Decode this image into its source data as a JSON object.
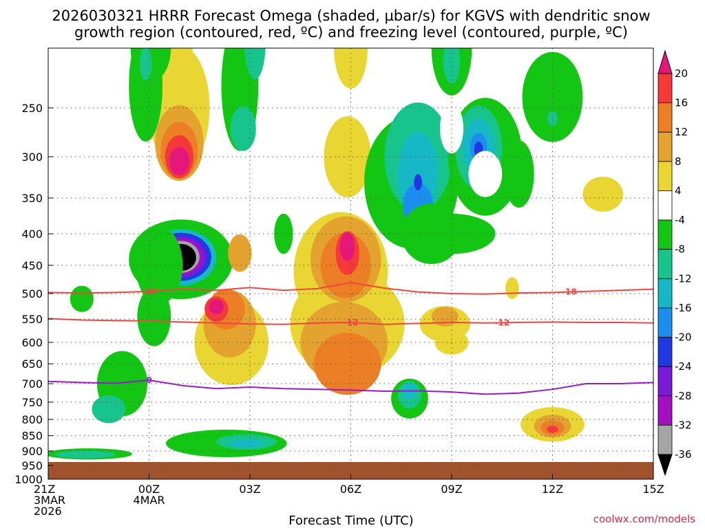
{
  "title_line1": "2026030321 HRRR Forecast Omega (shaded, µbar/s) for KGVS with dendritic snow",
  "title_line2": "growth region (contoured, red, ºC) and freezing level (contoured, purple, ºC)",
  "credit": "coolwx.com/models",
  "chart_data": {
    "type": "heatmap",
    "title": "2026030321 HRRR Forecast Omega (shaded, µbar/s) for KGVS with dendritic snow growth region (contoured, red, ºC) and freezing level (contoured, purple, ºC)",
    "xlabel": "Forecast Time (UTC)",
    "ylabel": "",
    "xlim": [
      0,
      18
    ],
    "ylim": [
      1000,
      200
    ],
    "y_scale": "log-pressure",
    "grid": true,
    "x_ticks": [
      {
        "x": 0,
        "lines": [
          "21Z",
          "3MAR",
          "2026"
        ]
      },
      {
        "x": 3,
        "lines": [
          "00Z",
          "4MAR"
        ]
      },
      {
        "x": 6,
        "lines": [
          "03Z"
        ]
      },
      {
        "x": 9,
        "lines": [
          "06Z"
        ]
      },
      {
        "x": 12,
        "lines": [
          "09Z"
        ]
      },
      {
        "x": 15,
        "lines": [
          "12Z"
        ]
      },
      {
        "x": 18,
        "lines": [
          "15Z"
        ]
      }
    ],
    "y_ticks": [
      250,
      300,
      350,
      400,
      450,
      500,
      550,
      600,
      650,
      700,
      750,
      800,
      850,
      900,
      950,
      1000
    ],
    "colorbar": {
      "levels": [
        "20",
        "16",
        "12",
        "8",
        "4",
        "-4",
        "-8",
        "-12",
        "-16",
        "-20",
        "-24",
        "-28",
        "-32",
        "-36"
      ],
      "colors": [
        "#e6177a",
        "#f5393a",
        "#ec7e26",
        "#e4a22f",
        "#e9d633",
        "#ffffff",
        "#13c613",
        "#17c48b",
        "#17b8c6",
        "#1a8ff0",
        "#2138e6",
        "#7a19d8",
        "#a40fc4",
        "#a5a5a5",
        "#000000"
      ]
    },
    "omega_features": [
      {
        "x": 3.95,
        "p": 435,
        "value": -40
      },
      {
        "x": 3.9,
        "p": 305,
        "value": 20
      },
      {
        "x": 5.0,
        "p": 530,
        "value": 20
      },
      {
        "x": 8.9,
        "p": 420,
        "value": 20
      },
      {
        "x": 11.0,
        "p": 410,
        "value": -24
      },
      {
        "x": 12.8,
        "p": 290,
        "value": -22
      },
      {
        "x": 15.0,
        "p": 830,
        "value": 16
      },
      {
        "x": 6.0,
        "p": 880,
        "value": -14
      },
      {
        "x": 10.75,
        "p": 720,
        "value": -18
      },
      {
        "x": 1.1,
        "p": 910,
        "value": -12
      },
      {
        "x": 2.9,
        "p": 215,
        "value": -12
      }
    ],
    "series": [
      {
        "name": "-18",
        "color": "#f0453e",
        "p": [
          498,
          499,
          498,
          496,
          492,
          494,
          489,
          494,
          491,
          480,
          490,
          497,
          500,
          501,
          499,
          498,
          496,
          494,
          492
        ]
      },
      {
        "name": "-12",
        "color": "#f0453e",
        "p": [
          549,
          552,
          553,
          554,
          556,
          558,
          560,
          561,
          558,
          557,
          561,
          559,
          557,
          558,
          557,
          556,
          557,
          557,
          558
        ]
      },
      {
        "name": "0",
        "color": "#9b18c8",
        "p": [
          694,
          697,
          699,
          691,
          705,
          713,
          709,
          713,
          715,
          717,
          720,
          719,
          722,
          728,
          725,
          715,
          700,
          700,
          697
        ]
      }
    ]
  }
}
